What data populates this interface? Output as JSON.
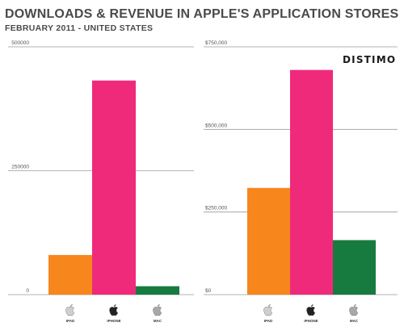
{
  "header": {
    "title": "DOWNLOADS & REVENUE IN APPLE'S APPLICATION STORES",
    "subtitle": "FEBRUARY 2011 - UNITED STATES",
    "brand": "DISTIMO"
  },
  "chart_data": [
    {
      "type": "bar",
      "title": "",
      "xlabel": "",
      "ylabel": "",
      "categories": [
        "IPAD",
        "IPHONE",
        "MAC"
      ],
      "category_icons": [
        "apple-icon",
        "apple-icon",
        "apple-icon"
      ],
      "values": [
        80000,
        432000,
        17000
      ],
      "colors": [
        "#f7861c",
        "#ef2a7b",
        "#177a3f"
      ],
      "ylim": [
        0,
        500000
      ],
      "yticks": [
        0,
        250000,
        500000
      ],
      "ytick_labels": [
        "0",
        "250000",
        "500000"
      ],
      "grid": true
    },
    {
      "type": "bar",
      "title": "",
      "xlabel": "",
      "ylabel": "",
      "categories": [
        "IPAD",
        "IPHONE",
        "MAC"
      ],
      "category_icons": [
        "apple-icon",
        "apple-icon",
        "apple-icon"
      ],
      "values": [
        323000,
        680000,
        165000
      ],
      "colors": [
        "#f7861c",
        "#ef2a7b",
        "#177a3f"
      ],
      "ylim": [
        0,
        750000
      ],
      "yticks": [
        0,
        250000,
        500000,
        750000
      ],
      "ytick_labels": [
        "$0",
        "$250,000",
        "$500,000",
        "$750,000"
      ],
      "grid": true
    }
  ]
}
